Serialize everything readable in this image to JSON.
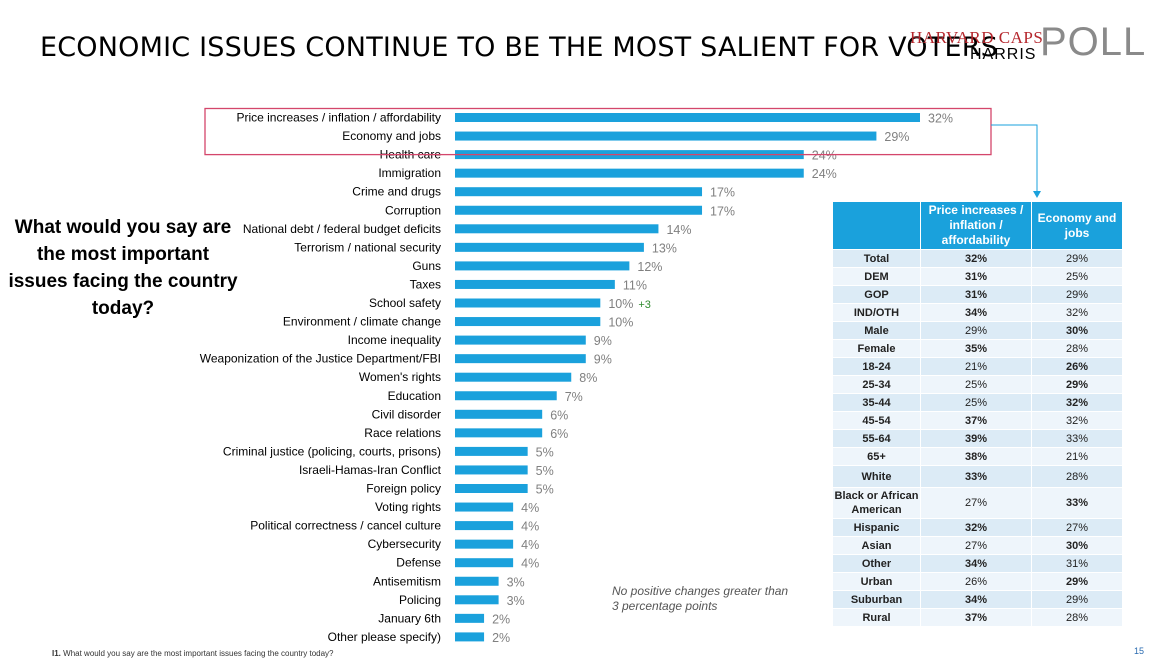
{
  "header": {
    "title": "ECONOMIC ISSUES CONTINUE TO BE THE MOST SALIENT FOR VOTERS",
    "logo_line1": "HARVARD CAPS",
    "logo_line2": "HARRIS",
    "logo_line3": "POLL"
  },
  "question": "What would you say are the most important issues facing the country today?",
  "note": "No positive changes greater than 3 percentage points",
  "footnote_prefix": "I1.",
  "footnote": "What would you say are the most important issues facing the country today?",
  "page_number": "15",
  "colors": {
    "bar": "#1aa1dc",
    "value_label": "#808080",
    "change": "#2e8b2e",
    "highlight": "#d4466b",
    "connector": "#1aa1dc"
  },
  "chart_data": {
    "type": "bar",
    "orientation": "horizontal",
    "categories": [
      "Price increases / inflation / affordability",
      "Economy and jobs",
      "Health care",
      "Immigration",
      "Crime and drugs",
      "Corruption",
      "National debt / federal budget deficits",
      "Terrorism / national security",
      "Guns",
      "Taxes",
      "School safety",
      "Environment / climate change",
      "Income inequality",
      "Weaponization of the Justice Department/FBI",
      "Women's rights",
      "Education",
      "Civil disorder",
      "Race relations",
      "Criminal justice (policing, courts, prisons)",
      "Israeli-Hamas-Iran Conflict",
      "Foreign policy",
      "Voting rights",
      "Political correctness / cancel culture",
      "Cybersecurity",
      "Defense",
      "Antisemitism",
      "Policing",
      "January 6th",
      "Other please specify)"
    ],
    "values": [
      32,
      29,
      24,
      24,
      17,
      17,
      14,
      13,
      12,
      11,
      10,
      10,
      9,
      9,
      8,
      7,
      6,
      6,
      5,
      5,
      5,
      4,
      4,
      4,
      4,
      3,
      3,
      2,
      2
    ],
    "labels": [
      "32%",
      "29%",
      "24%",
      "24%",
      "17%",
      "17%",
      "14%",
      "13%",
      "12%",
      "11%",
      "10%",
      "10%",
      "9%",
      "9%",
      "8%",
      "7%",
      "6%",
      "6%",
      "5%",
      "5%",
      "5%",
      "4%",
      "4%",
      "4%",
      "4%",
      "3%",
      "3%",
      "2%",
      "2%"
    ],
    "changes": {
      "10": "+3"
    },
    "highlighted_categories": [
      0,
      1
    ],
    "xlim": [
      0,
      32
    ],
    "title": "",
    "xlabel": "",
    "ylabel": ""
  },
  "crosstab": {
    "columns": [
      "Price increases / inflation / affordability",
      "Economy and jobs"
    ],
    "rows": [
      {
        "label": "Total",
        "v1": "32%",
        "v2": "29%",
        "bold": 1
      },
      {
        "label": "DEM",
        "v1": "31%",
        "v2": "25%",
        "bold": 1
      },
      {
        "label": "GOP",
        "v1": "31%",
        "v2": "29%",
        "bold": 1
      },
      {
        "label": "IND/OTH",
        "v1": "34%",
        "v2": "32%",
        "bold": 1
      },
      {
        "label": "Male",
        "v1": "29%",
        "v2": "30%",
        "bold": 2
      },
      {
        "label": "Female",
        "v1": "35%",
        "v2": "28%",
        "bold": 1
      },
      {
        "label": "18-24",
        "v1": "21%",
        "v2": "26%",
        "bold": 2
      },
      {
        "label": "25-34",
        "v1": "25%",
        "v2": "29%",
        "bold": 2
      },
      {
        "label": "35-44",
        "v1": "25%",
        "v2": "32%",
        "bold": 2
      },
      {
        "label": "45-54",
        "v1": "37%",
        "v2": "32%",
        "bold": 1
      },
      {
        "label": "55-64",
        "v1": "39%",
        "v2": "33%",
        "bold": 1
      },
      {
        "label": "65+",
        "v1": "38%",
        "v2": "21%",
        "bold": 1
      },
      {
        "label": "White",
        "v1": "33%",
        "v2": "28%",
        "bold": 1
      },
      {
        "label": "Black or African American",
        "v1": "27%",
        "v2": "33%",
        "bold": 2
      },
      {
        "label": "Hispanic",
        "v1": "32%",
        "v2": "27%",
        "bold": 1
      },
      {
        "label": "Asian",
        "v1": "27%",
        "v2": "30%",
        "bold": 2
      },
      {
        "label": "Other",
        "v1": "34%",
        "v2": "31%",
        "bold": 1
      },
      {
        "label": "Urban",
        "v1": "26%",
        "v2": "29%",
        "bold": 2
      },
      {
        "label": "Suburban",
        "v1": "34%",
        "v2": "29%",
        "bold": 1
      },
      {
        "label": "Rural",
        "v1": "37%",
        "v2": "28%",
        "bold": 1
      }
    ]
  }
}
